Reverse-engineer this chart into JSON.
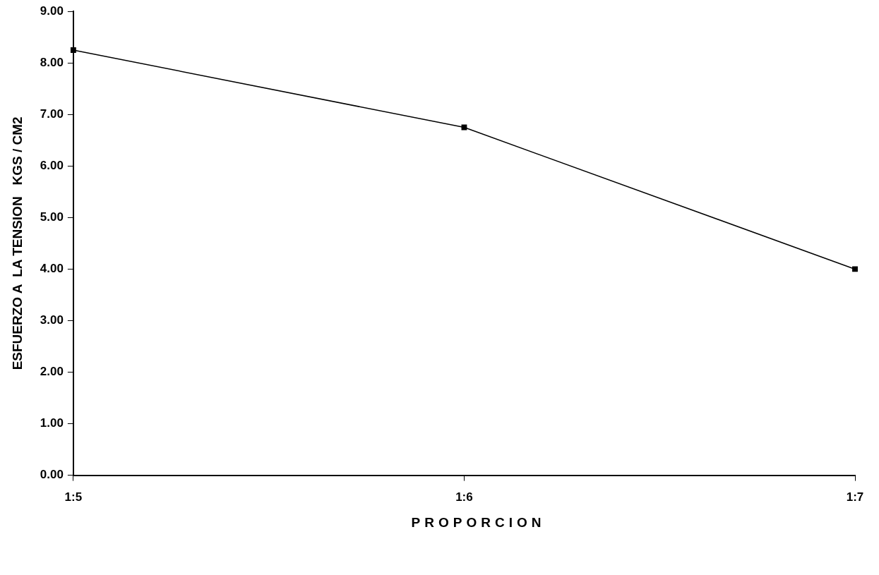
{
  "chart_data": {
    "type": "line",
    "xlabel": "PROPORCION",
    "ylabel": "ESFUERZO A  LA TENSION   KGS / CM2",
    "categories": [
      "1:5",
      "1:6",
      "1:7"
    ],
    "series": [
      {
        "color": "#000000",
        "values": [
          8.25,
          6.75,
          4.0
        ]
      }
    ],
    "ylim": [
      0,
      9
    ],
    "yticks": [
      {
        "value": 0,
        "label": "0.00"
      },
      {
        "value": 1,
        "label": "1.00"
      },
      {
        "value": 2,
        "label": "2.00"
      },
      {
        "value": 3,
        "label": "3.00"
      },
      {
        "value": 4,
        "label": "4.00"
      },
      {
        "value": 5,
        "label": "5.00"
      },
      {
        "value": 6,
        "label": "6.00"
      },
      {
        "value": 7,
        "label": "7.00"
      },
      {
        "value": 8,
        "label": "8.00"
      },
      {
        "value": 9,
        "label": "9.00"
      }
    ],
    "grid": false,
    "legend": false,
    "marker": "square",
    "line_style": "solid"
  }
}
